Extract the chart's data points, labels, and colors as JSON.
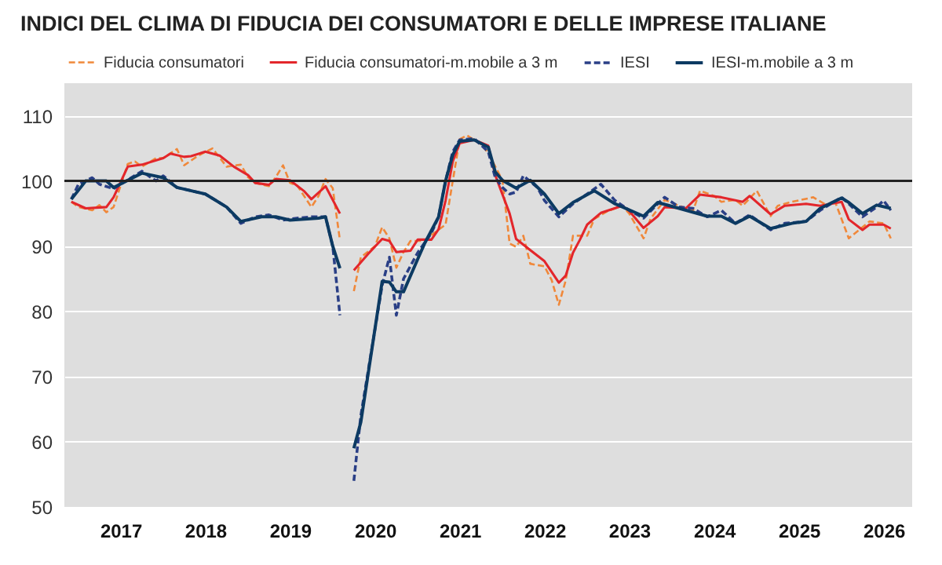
{
  "chart_data": {
    "type": "line",
    "title": "INDICI DEL CLIMA DI FIDUCIA DEI CONSUMATORI E DELLE IMPRESE ITALIANE",
    "xlim": [
      "2016-11",
      "2026-11"
    ],
    "xticks": [
      {
        "value": "2017-07",
        "label": "2017"
      },
      {
        "value": "2018-07",
        "label": "2018"
      },
      {
        "value": "2019-07",
        "label": "2019"
      },
      {
        "value": "2020-07",
        "label": "2020"
      },
      {
        "value": "2021-07",
        "label": "2021"
      },
      {
        "value": "2022-07",
        "label": "2022"
      },
      {
        "value": "2023-07",
        "label": "2023"
      },
      {
        "value": "2024-07",
        "label": "2024"
      },
      {
        "value": "2025-07",
        "label": "2025"
      },
      {
        "value": "2026-07",
        "label": "2026"
      }
    ],
    "ylim": [
      50,
      115
    ],
    "yticks": [
      50,
      60,
      70,
      80,
      90,
      100,
      110
    ],
    "grid": "y",
    "legend": "top",
    "ref_lines": [
      {
        "axis": "y",
        "value": 100,
        "color": "#222222"
      }
    ],
    "series": [
      {
        "name": "Fiducia consumatori",
        "color": "#f0883a",
        "line_style": "dashed",
        "x": [
          "2016-12",
          "2017-01",
          "2017-03",
          "2017-04",
          "2017-05",
          "2017-06",
          "2017-08",
          "2017-09",
          "2017-10",
          "2017-12",
          "2018-01",
          "2018-03",
          "2018-04",
          "2018-06",
          "2018-08",
          "2018-10",
          "2018-12",
          "2019-01",
          "2019-02",
          "2019-04",
          "2019-05",
          "2019-06",
          "2019-07",
          "2019-08",
          "2019-10",
          "2019-11",
          "2019-12",
          "2020-01",
          "2020-02",
          "2020-03",
          "2020-04",
          "2020-05",
          "2020-07",
          "2020-08",
          "2020-09",
          "2020-10",
          "2020-11",
          "2020-12",
          "2021-02",
          "2021-03",
          "2021-05",
          "2021-06",
          "2021-07",
          "2021-08",
          "2021-10",
          "2021-11",
          "2022-01",
          "2022-02",
          "2022-03",
          "2022-04",
          "2022-05",
          "2022-07",
          "2022-08",
          "2022-09",
          "2022-10",
          "2022-11",
          "2023-01",
          "2023-02",
          "2023-04",
          "2023-06",
          "2023-07",
          "2023-09",
          "2023-10",
          "2023-12",
          "2024-02",
          "2024-04",
          "2024-05",
          "2024-07",
          "2024-08",
          "2024-10",
          "2024-11",
          "2025-01",
          "2025-03",
          "2025-04",
          "2025-06",
          "2025-09",
          "2025-11",
          "2025-12",
          "2026-02",
          "2026-04",
          "2026-05",
          "2026-07",
          "2026-08"
        ],
        "values": [
          96.8,
          96,
          95.5,
          96.3,
          95.2,
          96,
          102.6,
          103,
          102.2,
          103.5,
          103.5,
          104.9,
          102.4,
          103.9,
          105,
          102.2,
          102.5,
          100.6,
          99.7,
          99.2,
          100.6,
          102.4,
          99.7,
          99.3,
          96,
          97.7,
          100.3,
          98.9,
          90.9,
          null,
          83.1,
          88.3,
          90,
          92.9,
          91.2,
          86.7,
          89.1,
          90.8,
          90.8,
          91.7,
          93.3,
          100,
          106.4,
          107,
          105.6,
          104.3,
          100.1,
          90.4,
          89.9,
          91.6,
          87.3,
          86.9,
          84.8,
          81,
          84.8,
          91.6,
          91.6,
          94.2,
          95.4,
          96.2,
          95,
          91.2,
          94.2,
          97.1,
          96.2,
          95.4,
          98.5,
          97.7,
          96.8,
          97.1,
          96.2,
          98.5,
          94.6,
          96.2,
          96.8,
          97.5,
          96.2,
          97.1,
          91.2,
          92.9,
          93.8,
          93.5,
          91.2
        ]
      },
      {
        "name": "Fiducia consumatori-m.mobile a 3 m",
        "color": "#e3262b",
        "line_style": "solid",
        "x": [
          "2016-12",
          "2017-02",
          "2017-05",
          "2017-06",
          "2017-08",
          "2017-10",
          "2018-01",
          "2018-02",
          "2018-04",
          "2018-05",
          "2018-07",
          "2018-09",
          "2018-11",
          "2019-01",
          "2019-02",
          "2019-04",
          "2019-05",
          "2019-07",
          "2019-09",
          "2019-10",
          "2019-12",
          "2020-02",
          "2020-03",
          "2020-04",
          "2020-06",
          "2020-08",
          "2020-09",
          "2020-10",
          "2020-12",
          "2021-01",
          "2021-03",
          "2021-04",
          "2021-05",
          "2021-06",
          "2021-07",
          "2021-09",
          "2021-11",
          "2021-12",
          "2022-02",
          "2022-03",
          "2022-05",
          "2022-07",
          "2022-09",
          "2022-10",
          "2022-11",
          "2022-12",
          "2023-01",
          "2023-03",
          "2023-06",
          "2023-07",
          "2023-09",
          "2023-11",
          "2023-12",
          "2024-03",
          "2024-05",
          "2024-08",
          "2024-11",
          "2024-12",
          "2025-03",
          "2025-05",
          "2025-08",
          "2025-10",
          "2026-01",
          "2026-02",
          "2026-04",
          "2026-05",
          "2026-07",
          "2026-08"
        ],
        "values": [
          96.8,
          95.8,
          96,
          97.5,
          102.2,
          102.5,
          103.5,
          104.2,
          103.7,
          103.8,
          104.5,
          103.9,
          102.2,
          100.9,
          99.7,
          99.4,
          100.3,
          100.1,
          98.4,
          97.2,
          99.2,
          95,
          null,
          86.3,
          88.8,
          91.1,
          90.8,
          89.1,
          89.3,
          91,
          91,
          92.6,
          97,
          103,
          105.8,
          106.3,
          105.4,
          100.9,
          95,
          91.1,
          89.4,
          87.7,
          84.4,
          85.5,
          89,
          91,
          93.3,
          95.1,
          96.2,
          95.4,
          92.8,
          94.6,
          96,
          95.8,
          97.9,
          97.5,
          96.8,
          97.7,
          94.9,
          96.2,
          96.5,
          96.2,
          96.8,
          94.1,
          92.5,
          93.3,
          93.3,
          92.7
        ]
      },
      {
        "name": "IESI",
        "color": "#2a3f86",
        "line_style": "dashed",
        "x": [
          "2016-12",
          "2017-01",
          "2017-03",
          "2017-04",
          "2017-06",
          "2017-07",
          "2017-10",
          "2017-12",
          "2018-01",
          "2018-03",
          "2018-07",
          "2018-10",
          "2018-12",
          "2019-02",
          "2019-04",
          "2019-06",
          "2019-08",
          "2019-10",
          "2019-12",
          "2020-01",
          "2020-02",
          "2020-03",
          "2020-04",
          "2020-05",
          "2020-08",
          "2020-09",
          "2020-10",
          "2020-11",
          "2021-01",
          "2021-03",
          "2021-04",
          "2021-05",
          "2021-06",
          "2021-07",
          "2021-09",
          "2021-11",
          "2021-12",
          "2022-01",
          "2022-02",
          "2022-03",
          "2022-04",
          "2022-06",
          "2022-07",
          "2022-09",
          "2022-11",
          "2023-01",
          "2023-03",
          "2023-05",
          "2023-07",
          "2023-09",
          "2023-11",
          "2023-12",
          "2024-02",
          "2024-04",
          "2024-06",
          "2024-08",
          "2024-10",
          "2024-12",
          "2025-03",
          "2025-05",
          "2025-08",
          "2025-10",
          "2026-01",
          "2026-02",
          "2026-04",
          "2026-06",
          "2026-07",
          "2026-08"
        ],
        "values": [
          97.2,
          99.5,
          100.5,
          99.5,
          98.8,
          99.5,
          101.5,
          100,
          100.8,
          99,
          98,
          96,
          93.5,
          94.5,
          94.8,
          94,
          94.3,
          94.5,
          94.5,
          90,
          79.4,
          null,
          54,
          64,
          84,
          88.3,
          79.4,
          85,
          89,
          92,
          94.5,
          100,
          104.5,
          106.3,
          106.5,
          104.5,
          100.5,
          99,
          98,
          98.3,
          100.8,
          99,
          97,
          94.5,
          96.5,
          98,
          99.5,
          97,
          95.5,
          94.3,
          96.5,
          97.5,
          96,
          95.8,
          94.5,
          95.5,
          93.5,
          94.8,
          92.5,
          93.5,
          93.8,
          95.5,
          97.5,
          96.5,
          94.5,
          96,
          97,
          95.5
        ]
      },
      {
        "name": "IESI-m.mobile a 3 m",
        "color": "#0c3a62",
        "line_style": "solid",
        "x": [
          "2016-12",
          "2017-02",
          "2017-05",
          "2017-06",
          "2017-10",
          "2018-01",
          "2018-03",
          "2018-07",
          "2018-10",
          "2018-12",
          "2019-03",
          "2019-05",
          "2019-07",
          "2019-11",
          "2019-12",
          "2020-01",
          "2020-02",
          "2020-03",
          "2020-04",
          "2020-05",
          "2020-08",
          "2020-09",
          "2020-10",
          "2020-11",
          "2021-01",
          "2021-02",
          "2021-04",
          "2021-05",
          "2021-06",
          "2021-07",
          "2021-09",
          "2021-11",
          "2021-12",
          "2022-01",
          "2022-03",
          "2022-05",
          "2022-07",
          "2022-09",
          "2022-11",
          "2023-02",
          "2023-05",
          "2023-09",
          "2023-11",
          "2024-02",
          "2024-06",
          "2024-08",
          "2024-10",
          "2024-12",
          "2025-03",
          "2025-06",
          "2025-08",
          "2025-10",
          "2026-01",
          "2026-02",
          "2026-04",
          "2026-06",
          "2026-08"
        ],
        "values": [
          97.2,
          100,
          100,
          99,
          101.2,
          100.5,
          99,
          98,
          96,
          93.8,
          94.5,
          94.5,
          94,
          94.3,
          94.5,
          90,
          86.6,
          null,
          59,
          63,
          84.6,
          84.5,
          83,
          83,
          88,
          90.5,
          94.5,
          100,
          104,
          106.1,
          106.3,
          105.2,
          101.4,
          100.1,
          98.9,
          100.1,
          98,
          95,
          96.7,
          98.5,
          96.5,
          94.6,
          96.7,
          95.8,
          94.6,
          94.6,
          93.5,
          94.6,
          92.7,
          93.5,
          93.8,
          95.8,
          97.4,
          96.7,
          95,
          96.3,
          95.8
        ]
      }
    ]
  }
}
